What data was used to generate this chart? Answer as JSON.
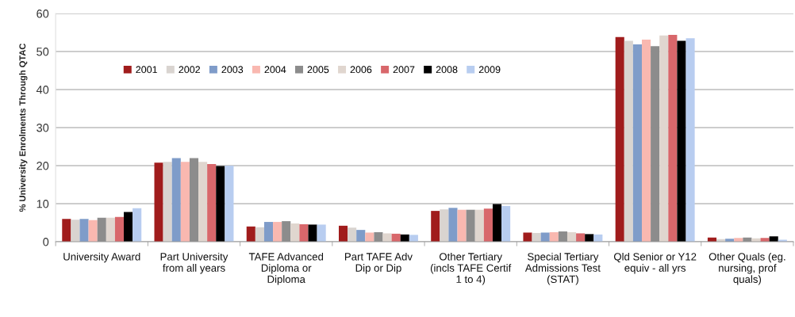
{
  "chart_data": {
    "type": "bar",
    "ylabel": "% University Enrolments Through QTAC",
    "categories": [
      "University Award",
      "Part University from all years",
      "TAFE Advanced Diploma or Diploma",
      "Part TAFE Adv Dip or Dip",
      "Other Tertiary (incls TAFE Certif 1 to 4)",
      "Special Tertiary Admissions Test (STAT)",
      "Qld Senior or Y12 equiv - all yrs",
      "Other Quals (eg. nursing, prof quals)"
    ],
    "series": [
      {
        "name": "2001",
        "color": "#a01c1c",
        "values": [
          6.0,
          20.8,
          4.0,
          4.2,
          8.1,
          2.4,
          53.8,
          1.1
        ]
      },
      {
        "name": "2002",
        "color": "#d9d4d0",
        "values": [
          5.8,
          21.0,
          3.8,
          3.7,
          8.5,
          2.3,
          52.8,
          0.7
        ]
      },
      {
        "name": "2003",
        "color": "#7f9cc9",
        "values": [
          6.0,
          22.0,
          5.2,
          3.1,
          8.9,
          2.4,
          51.9,
          0.8
        ]
      },
      {
        "name": "2004",
        "color": "#f9b8b0",
        "values": [
          5.7,
          21.0,
          5.2,
          2.4,
          8.4,
          2.5,
          53.1,
          1.0
        ]
      },
      {
        "name": "2005",
        "color": "#8c8c8c",
        "values": [
          6.3,
          22.0,
          5.4,
          2.5,
          8.4,
          2.7,
          51.4,
          1.1
        ]
      },
      {
        "name": "2006",
        "color": "#e0d6cf",
        "values": [
          6.3,
          21.0,
          4.8,
          2.2,
          8.4,
          2.5,
          54.2,
          0.9
        ]
      },
      {
        "name": "2007",
        "color": "#d8676b",
        "values": [
          6.5,
          20.4,
          4.6,
          2.1,
          8.7,
          2.2,
          54.4,
          1.0
        ]
      },
      {
        "name": "2008",
        "color": "#000000",
        "values": [
          7.8,
          19.9,
          4.5,
          1.9,
          9.9,
          2.0,
          52.8,
          1.4
        ]
      },
      {
        "name": "2009",
        "color": "#b8cdf0",
        "values": [
          8.8,
          20.0,
          4.5,
          1.8,
          9.4,
          1.9,
          53.5,
          0.5
        ]
      }
    ],
    "ylim": [
      0,
      60
    ],
    "yticks": [
      0,
      10,
      20,
      30,
      40,
      50,
      60
    ],
    "grid": "y",
    "legend": "top left"
  }
}
